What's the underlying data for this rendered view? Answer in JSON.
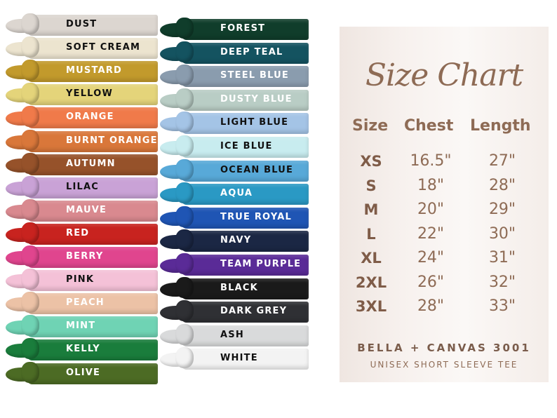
{
  "colors_left": [
    {
      "name": "DUST",
      "color": "#dcd6d0",
      "text": "#111"
    },
    {
      "name": "SOFT CREAM",
      "color": "#ece4cf",
      "text": "#111"
    },
    {
      "name": "MUSTARD",
      "color": "#c29a2c",
      "text": "#fff"
    },
    {
      "name": "YELLOW",
      "color": "#e4d47a",
      "text": "#111"
    },
    {
      "name": "ORANGE",
      "color": "#f07a4a",
      "text": "#fff"
    },
    {
      "name": "BURNT ORANGE",
      "color": "#d9773a",
      "text": "#fff"
    },
    {
      "name": "AUTUMN",
      "color": "#96522a",
      "text": "#fff"
    },
    {
      "name": "LILAC",
      "color": "#c9a2d6",
      "text": "#111"
    },
    {
      "name": "MAUVE",
      "color": "#d9898f",
      "text": "#fff"
    },
    {
      "name": "RED",
      "color": "#c8231f",
      "text": "#fff"
    },
    {
      "name": "BERRY",
      "color": "#e0458e",
      "text": "#fff"
    },
    {
      "name": "PINK",
      "color": "#f4c1d7",
      "text": "#111"
    },
    {
      "name": "PEACH",
      "color": "#ecc2a6",
      "text": "#fff"
    },
    {
      "name": "MINT",
      "color": "#6fd3b4",
      "text": "#fff"
    },
    {
      "name": "KELLY",
      "color": "#1a7d3c",
      "text": "#fff"
    },
    {
      "name": "OLIVE",
      "color": "#4c6b24",
      "text": "#fff"
    }
  ],
  "colors_right": [
    {
      "name": "FOREST",
      "color": "#103d2b",
      "text": "#fff"
    },
    {
      "name": "DEEP TEAL",
      "color": "#145360",
      "text": "#fff"
    },
    {
      "name": "STEEL BLUE",
      "color": "#8a9cae",
      "text": "#fff"
    },
    {
      "name": "DUSTY BLUE",
      "color": "#b9cdc5",
      "text": "#fff"
    },
    {
      "name": "LIGHT BLUE",
      "color": "#a4c4e6",
      "text": "#111"
    },
    {
      "name": "ICE BLUE",
      "color": "#c8ecef",
      "text": "#111"
    },
    {
      "name": "OCEAN BLUE",
      "color": "#58a9d8",
      "text": "#111"
    },
    {
      "name": "AQUA",
      "color": "#2a99c4",
      "text": "#fff"
    },
    {
      "name": "TRUE ROYAL",
      "color": "#1f55b4",
      "text": "#fff"
    },
    {
      "name": "NAVY",
      "color": "#1b2744",
      "text": "#fff"
    },
    {
      "name": "TEAM PURPLE",
      "color": "#5a2b97",
      "text": "#fff"
    },
    {
      "name": "BLACK",
      "color": "#1a1a1a",
      "text": "#fff"
    },
    {
      "name": "DARK GREY",
      "color": "#2f3034",
      "text": "#fff"
    },
    {
      "name": "ASH",
      "color": "#d9dadb",
      "text": "#111"
    },
    {
      "name": "WHITE",
      "color": "#f3f3f3",
      "text": "#111"
    }
  ],
  "size_chart": {
    "title": "Size Chart",
    "headers": [
      "Size",
      "Chest",
      "Length"
    ],
    "rows": [
      {
        "size": "XS",
        "chest": "16.5\"",
        "length": "27\""
      },
      {
        "size": "S",
        "chest": "18\"",
        "length": "28\""
      },
      {
        "size": "M",
        "chest": "20\"",
        "length": "29\""
      },
      {
        "size": "L",
        "chest": "22\"",
        "length": "30\""
      },
      {
        "size": "XL",
        "chest": "24\"",
        "length": "31\""
      },
      {
        "size": "2XL",
        "chest": "26\"",
        "length": "32\""
      },
      {
        "size": "3XL",
        "chest": "28\"",
        "length": "33\""
      }
    ],
    "brand": "BELLA + CANVAS 3001",
    "subtitle": "UNISEX SHORT SLEEVE TEE",
    "text_color": "#8e6b55"
  }
}
